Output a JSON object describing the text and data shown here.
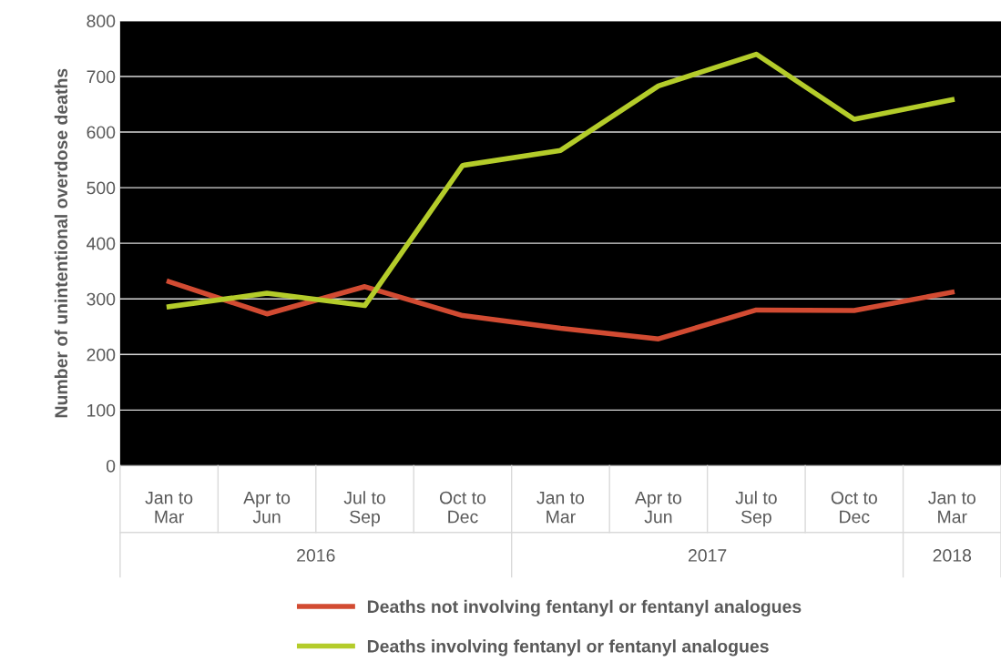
{
  "chart_data": {
    "type": "line",
    "ylabel": "Number of unintentional overdose deaths",
    "categories": [
      "Jan to\nMar",
      "Apr to\nJun",
      "Jul to\nSep",
      "Oct to\nDec",
      "Jan to\nMar",
      "Apr to\nJun",
      "Jul to\nSep",
      "Oct to\nDec",
      "Jan to\nMar"
    ],
    "series": [
      {
        "name": "Deaths not involving fentanyl or fentanyl analogues",
        "color": "#d24b32",
        "values": [
          331,
          273,
          322,
          270,
          247,
          228,
          280,
          279,
          312
        ]
      },
      {
        "name": "Deaths involving fentanyl or fentanyl analogues",
        "color": "#b4cc2a",
        "values": [
          286,
          310,
          288,
          540,
          567,
          683,
          740,
          623,
          658
        ]
      }
    ],
    "annotations": [
      "2016",
      "2017",
      "2018"
    ],
    "ylim": [
      0,
      800
    ],
    "yticks": [
      0,
      100,
      200,
      300,
      400,
      500,
      600,
      700,
      800
    ],
    "grid": "y",
    "legend": "bottom",
    "marker": "none",
    "line_style": "solid"
  }
}
